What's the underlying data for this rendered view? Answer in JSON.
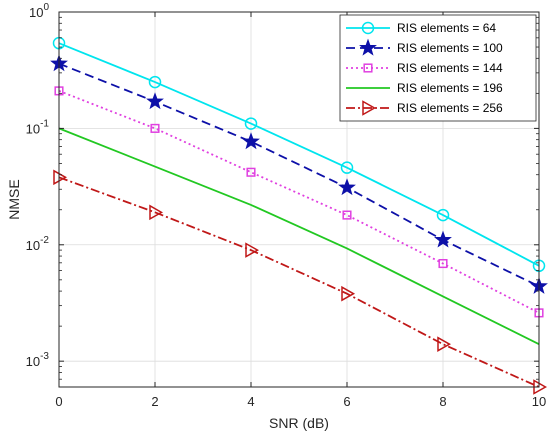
{
  "chart_data": {
    "type": "line",
    "xlabel": "SNR (dB)",
    "ylabel": "NMSE",
    "x": [
      0,
      2,
      4,
      6,
      8,
      10
    ],
    "xlim": [
      0,
      10
    ],
    "xticks": [
      "0",
      "2",
      "4",
      "6",
      "8",
      "10"
    ],
    "yscale": "log",
    "ylim": [
      0.0006,
      1
    ],
    "yticks": [
      {
        "value": 0.001,
        "base": "10",
        "exp": "-3"
      },
      {
        "value": 0.01,
        "base": "10",
        "exp": "-2"
      },
      {
        "value": 0.1,
        "base": "10",
        "exp": "-1"
      },
      {
        "value": 1,
        "base": "10",
        "exp": "0"
      }
    ],
    "grid": true,
    "legend_position": "top-right",
    "series": [
      {
        "name": "RIS elements = 64",
        "values": [
          0.54,
          0.25,
          0.11,
          0.046,
          0.018,
          0.0066
        ],
        "color": "#00e5ee",
        "dash": "solid",
        "marker": "circle"
      },
      {
        "name": "RIS elements = 100",
        "values": [
          0.36,
          0.17,
          0.077,
          0.031,
          0.011,
          0.0044
        ],
        "color": "#0d10a8",
        "dash": "dashed",
        "marker": "star"
      },
      {
        "name": "RIS elements = 144",
        "values": [
          0.21,
          0.1,
          0.042,
          0.018,
          0.0069,
          0.0026
        ],
        "color": "#e040e0",
        "dash": "dotted",
        "marker": "square"
      },
      {
        "name": "RIS elements = 196",
        "values": [
          0.1,
          0.047,
          0.022,
          0.0093,
          0.0036,
          0.0014
        ],
        "color": "#22c822",
        "dash": "solid",
        "marker": "none"
      },
      {
        "name": "RIS elements = 256",
        "values": [
          0.038,
          0.019,
          0.009,
          0.0038,
          0.0014,
          0.0006
        ],
        "color": "#c01818",
        "dash": "dashdot",
        "marker": "triangle-right"
      }
    ]
  }
}
